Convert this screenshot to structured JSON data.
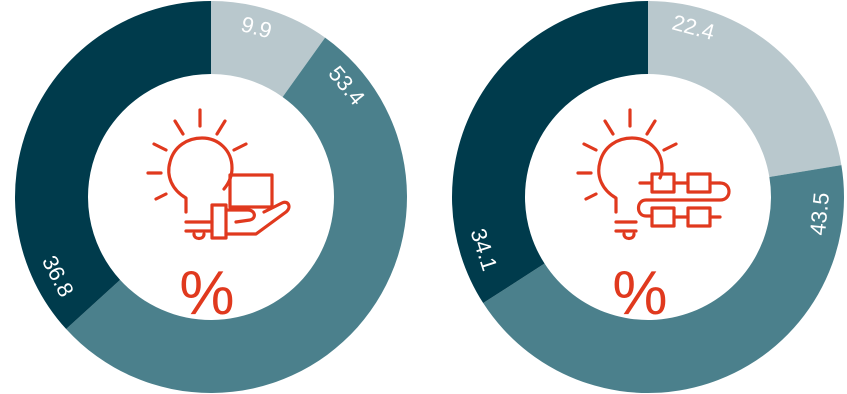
{
  "colors": {
    "dark": "#003b4c",
    "mid": "#4b808c",
    "light": "#b9c8cd",
    "accent": "#e0391e",
    "label": "#ffffff"
  },
  "chart_data": [
    {
      "type": "pie",
      "variant": "donut",
      "icon": "lightbulb-hand-box-icon",
      "center_label": "%",
      "slices": [
        {
          "value": 9.9,
          "label": "9.9",
          "color": "#b9c8cd"
        },
        {
          "value": 53.4,
          "label": "53.4",
          "color": "#4b808c"
        },
        {
          "value": 36.8,
          "label": "36.8",
          "color": "#003b4c"
        }
      ]
    },
    {
      "type": "pie",
      "variant": "donut",
      "icon": "lightbulb-process-icon",
      "center_label": "%",
      "slices": [
        {
          "value": 22.4,
          "label": "22.4",
          "color": "#b9c8cd"
        },
        {
          "value": 43.5,
          "label": "43.5",
          "color": "#4b808c"
        },
        {
          "value": 34.1,
          "label": "34.1",
          "color": "#003b4c"
        }
      ]
    }
  ]
}
